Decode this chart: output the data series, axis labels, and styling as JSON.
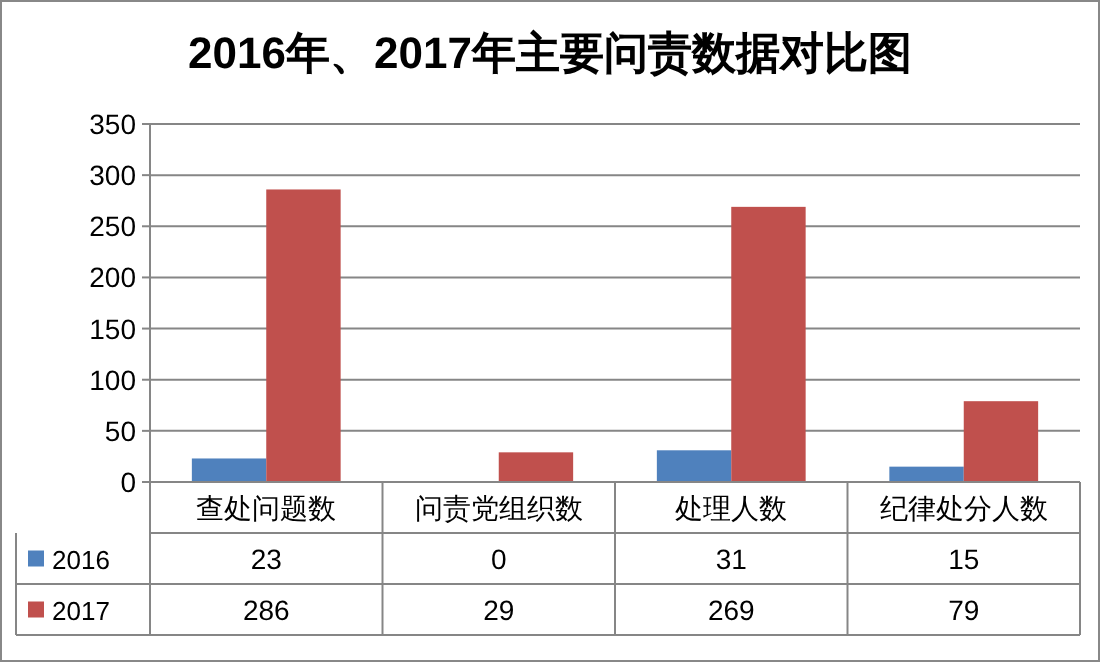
{
  "chart_data": {
    "type": "bar",
    "title": "2016年、2017年主要问责数据对比图",
    "categories": [
      "查处问题数",
      "问责党组织数",
      "处理人数",
      "纪律处分人数"
    ],
    "series": [
      {
        "name": "2016",
        "color": "#4f81bd",
        "values": [
          23,
          0,
          31,
          15
        ]
      },
      {
        "name": "2017",
        "color": "#c0504d",
        "values": [
          286,
          29,
          269,
          79
        ]
      }
    ],
    "ylim": [
      0,
      350
    ],
    "yticks": [
      0,
      50,
      100,
      150,
      200,
      250,
      300,
      350
    ],
    "grid": "y",
    "legend": "bottom",
    "data_labels": true
  }
}
